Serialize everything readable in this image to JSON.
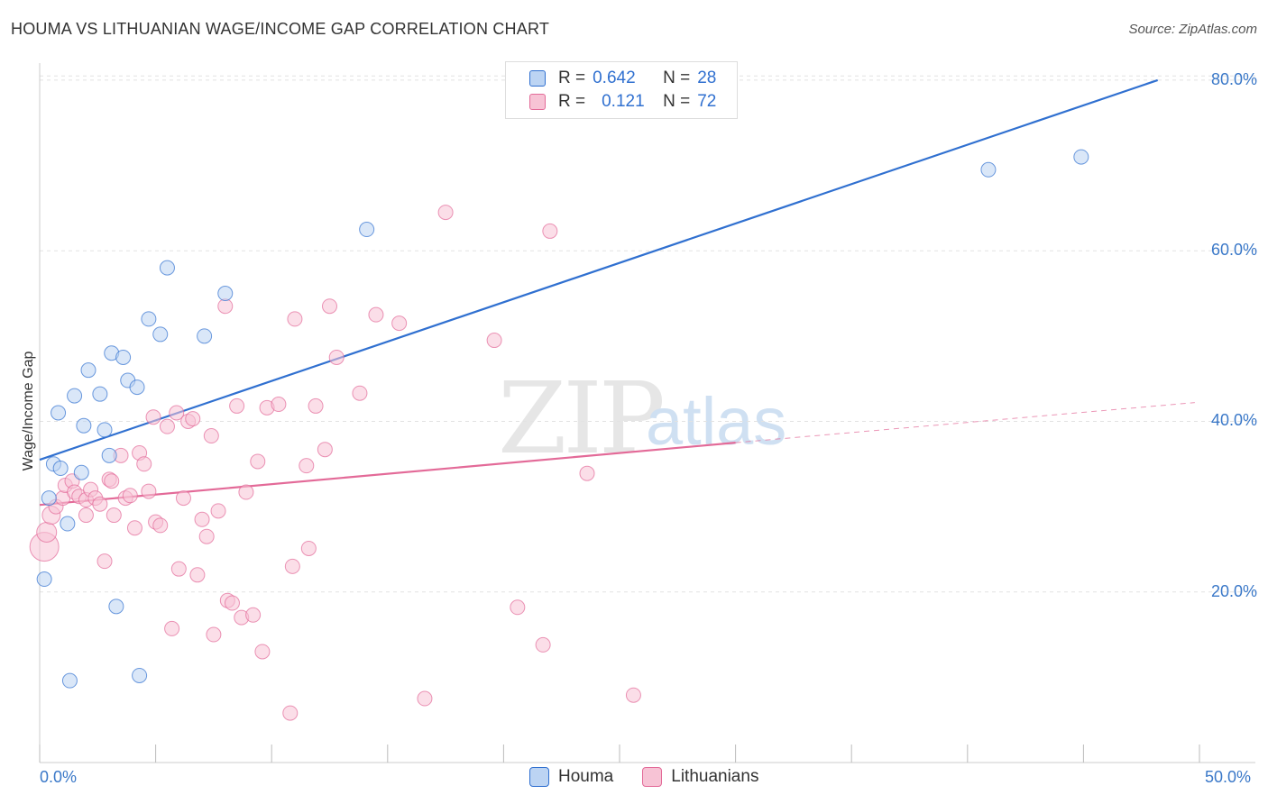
{
  "title": "HOUMA VS LITHUANIAN WAGE/INCOME GAP CORRELATION CHART",
  "source": "Source: ZipAtlas.com",
  "watermark": {
    "zip": "ZIP",
    "atlas": "atlas"
  },
  "colors": {
    "houma": "#3070d0",
    "houma_fill": "#bcd4f3",
    "lith": "#e36a98",
    "lith_fill": "#f7c3d5"
  },
  "legend": {
    "rows": [
      {
        "r_label": "R =",
        "r_value": "0.642",
        "n_label": "N =",
        "n_value": "28"
      },
      {
        "r_label": "R =",
        "r_value": "0.121",
        "n_label": "N =",
        "n_value": "72"
      }
    ]
  },
  "bottom_legend": [
    "Houma",
    "Lithuanians"
  ],
  "chart_data": {
    "type": "scatter",
    "title": "HOUMA VS LITHUANIAN WAGE/INCOME GAP CORRELATION CHART",
    "xlabel": "",
    "ylabel": "Wage/Income Gap",
    "xlim": [
      0,
      50
    ],
    "ylim": [
      0,
      82
    ],
    "y_ticks": [
      "20.0%",
      "40.0%",
      "60.0%",
      "80.0%"
    ],
    "y_tick_values": [
      20,
      40,
      60,
      80
    ],
    "x_ticks": [
      "0.0%",
      "50.0%"
    ],
    "series": [
      {
        "name": "Houma",
        "trend": {
          "x": [
            0,
            48.2
          ],
          "y": [
            35.5,
            80.0
          ],
          "dashed_to": null
        },
        "points": [
          [
            0.2,
            21.5
          ],
          [
            0.4,
            31.0
          ],
          [
            0.6,
            35.0
          ],
          [
            0.9,
            34.5
          ],
          [
            1.2,
            28.0
          ],
          [
            0.8,
            41.0
          ],
          [
            1.5,
            43.0
          ],
          [
            1.8,
            34.0
          ],
          [
            1.9,
            39.5
          ],
          [
            2.1,
            46.0
          ],
          [
            2.6,
            43.2
          ],
          [
            2.8,
            39.0
          ],
          [
            3.0,
            36.0
          ],
          [
            3.1,
            48.0
          ],
          [
            3.6,
            47.5
          ],
          [
            3.8,
            44.8
          ],
          [
            4.2,
            44.0
          ],
          [
            4.7,
            52.0
          ],
          [
            5.2,
            50.2
          ],
          [
            5.5,
            58.0
          ],
          [
            7.1,
            50.0
          ],
          [
            8.0,
            55.0
          ],
          [
            14.1,
            62.5
          ],
          [
            40.9,
            69.5
          ],
          [
            44.9,
            71.0
          ],
          [
            3.3,
            18.3
          ],
          [
            1.3,
            9.6
          ],
          [
            4.3,
            10.2
          ]
        ]
      },
      {
        "name": "Lithuanians",
        "trend": {
          "x": [
            0,
            30.0
          ],
          "y": [
            30.2,
            37.5
          ],
          "dashed_to": {
            "x": 49.8,
            "y": 42.2
          }
        },
        "points": [
          [
            0.2,
            25.3
          ],
          [
            0.3,
            27.0
          ],
          [
            0.5,
            29.0
          ],
          [
            0.7,
            30.0
          ],
          [
            1.0,
            31.0
          ],
          [
            1.1,
            32.5
          ],
          [
            1.4,
            33.0
          ],
          [
            1.5,
            31.7
          ],
          [
            1.7,
            31.2
          ],
          [
            2.0,
            30.8
          ],
          [
            2.0,
            29.0
          ],
          [
            2.2,
            32.0
          ],
          [
            2.4,
            31.0
          ],
          [
            2.6,
            30.3
          ],
          [
            2.8,
            23.6
          ],
          [
            3.0,
            33.2
          ],
          [
            3.1,
            33.0
          ],
          [
            3.2,
            29.0
          ],
          [
            3.5,
            36.0
          ],
          [
            3.7,
            31.0
          ],
          [
            3.9,
            31.3
          ],
          [
            4.1,
            27.5
          ],
          [
            4.3,
            36.3
          ],
          [
            4.5,
            35.0
          ],
          [
            4.7,
            31.8
          ],
          [
            4.9,
            40.5
          ],
          [
            5.0,
            28.2
          ],
          [
            5.2,
            27.8
          ],
          [
            5.5,
            39.4
          ],
          [
            5.7,
            15.7
          ],
          [
            5.9,
            41.0
          ],
          [
            6.0,
            22.7
          ],
          [
            6.2,
            31.0
          ],
          [
            6.4,
            40.0
          ],
          [
            6.6,
            40.3
          ],
          [
            6.8,
            22.0
          ],
          [
            7.0,
            28.5
          ],
          [
            7.2,
            26.5
          ],
          [
            7.4,
            38.3
          ],
          [
            7.5,
            15.0
          ],
          [
            7.7,
            29.5
          ],
          [
            8.0,
            53.5
          ],
          [
            8.1,
            19.0
          ],
          [
            8.3,
            18.7
          ],
          [
            8.5,
            41.8
          ],
          [
            8.7,
            17.0
          ],
          [
            8.9,
            31.7
          ],
          [
            9.2,
            17.3
          ],
          [
            9.4,
            35.3
          ],
          [
            9.6,
            13.0
          ],
          [
            9.8,
            41.6
          ],
          [
            10.3,
            42.0
          ],
          [
            10.8,
            5.8
          ],
          [
            10.9,
            23.0
          ],
          [
            11.0,
            52.0
          ],
          [
            11.5,
            34.8
          ],
          [
            11.6,
            25.1
          ],
          [
            11.9,
            41.8
          ],
          [
            12.3,
            36.7
          ],
          [
            12.5,
            53.5
          ],
          [
            12.8,
            47.5
          ],
          [
            13.8,
            43.3
          ],
          [
            14.5,
            52.5
          ],
          [
            15.5,
            51.5
          ],
          [
            16.6,
            7.5
          ],
          [
            17.5,
            64.5
          ],
          [
            19.6,
            49.5
          ],
          [
            20.6,
            18.2
          ],
          [
            21.7,
            13.8
          ],
          [
            22.0,
            62.3
          ],
          [
            23.6,
            33.9
          ],
          [
            25.6,
            7.9
          ]
        ]
      }
    ]
  }
}
